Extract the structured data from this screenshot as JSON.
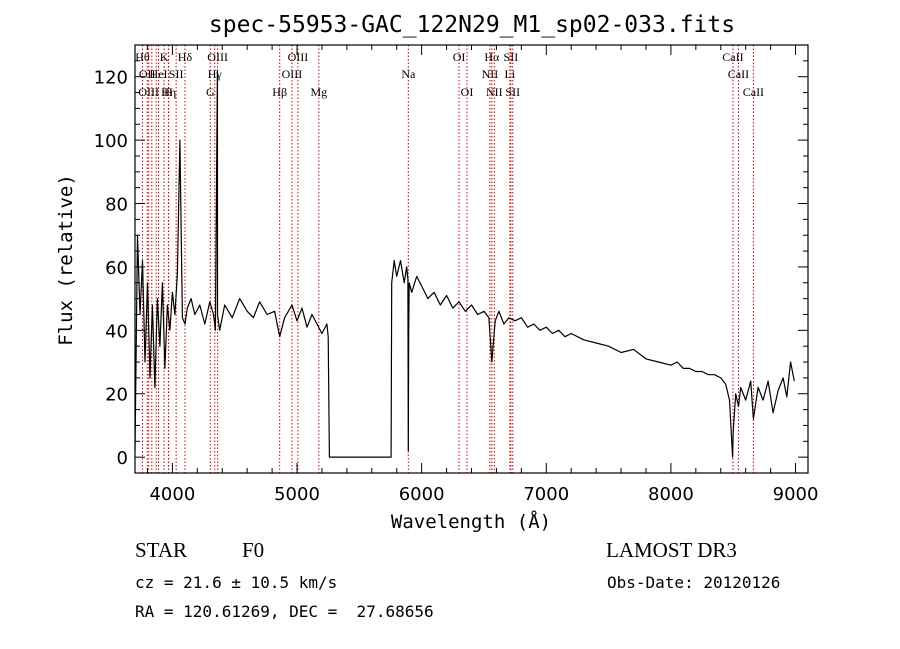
{
  "chart_data": {
    "type": "line",
    "title": "spec-55953-GAC_122N29_M1_sp02-033.fits",
    "xlabel": "Wavelength (Å)",
    "ylabel": "Flux (relative)",
    "xlim": [
      3700,
      9100
    ],
    "ylim": [
      -5,
      130
    ],
    "x_ticks": [
      4000,
      5000,
      6000,
      7000,
      8000,
      9000
    ],
    "y_ticks": [
      0,
      20,
      40,
      60,
      80,
      100,
      120
    ],
    "grid": false,
    "series": [
      {
        "x": [
          3700,
          3720,
          3740,
          3760,
          3780,
          3800,
          3820,
          3840,
          3860,
          3880,
          3900,
          3920,
          3940,
          3960,
          3980,
          4000,
          4020,
          4040,
          4060,
          4080,
          4101,
          4120,
          4150,
          4180,
          4220,
          4260,
          4300,
          4330,
          4345,
          4361,
          4362,
          4380,
          4420,
          4480,
          4540,
          4600,
          4650,
          4700,
          4760,
          4820,
          4861,
          4900,
          4960,
          5000,
          5040,
          5080,
          5120,
          5160,
          5200,
          5240,
          5250,
          5260,
          5290,
          5500,
          5700,
          5755,
          5760,
          5780,
          5800,
          5830,
          5860,
          5880,
          5890,
          5893,
          5896,
          5900,
          5920,
          5960,
          6000,
          6050,
          6100,
          6150,
          6200,
          6250,
          6300,
          6350,
          6400,
          6450,
          6500,
          6540,
          6563,
          6590,
          6620,
          6660,
          6700,
          6750,
          6800,
          6850,
          6900,
          6950,
          7000,
          7050,
          7100,
          7150,
          7200,
          7300,
          7400,
          7500,
          7600,
          7700,
          7800,
          7900,
          8000,
          8050,
          8100,
          8150,
          8200,
          8250,
          8300,
          8350,
          8400,
          8440,
          8470,
          8495,
          8500,
          8520,
          8542,
          8560,
          8600,
          8640,
          8662,
          8700,
          8740,
          8780,
          8820,
          8860,
          8900,
          8930,
          8960,
          8990
        ],
        "y": [
          2,
          70,
          45,
          62,
          30,
          55,
          25,
          48,
          22,
          50,
          35,
          55,
          28,
          48,
          40,
          52,
          45,
          58,
          100,
          44,
          42,
          47,
          50,
          45,
          48,
          42,
          49,
          45,
          40,
          122,
          45,
          40,
          48,
          44,
          50,
          46,
          44,
          49,
          45,
          46,
          38,
          44,
          48,
          43,
          47,
          41,
          45,
          42,
          39,
          42,
          38,
          0,
          0,
          0,
          0,
          0,
          55,
          62,
          57,
          62,
          55,
          60,
          56,
          2,
          40,
          55,
          52,
          57,
          54,
          50,
          52,
          48,
          51,
          47,
          49,
          46,
          48,
          45,
          46,
          44,
          30,
          43,
          46,
          42,
          44,
          43,
          44,
          41,
          42,
          40,
          41,
          39,
          40,
          38,
          39,
          37,
          36,
          35,
          33,
          34,
          31,
          30,
          29,
          30,
          28,
          28,
          27,
          27,
          26,
          26,
          25,
          23,
          18,
          0,
          8,
          20,
          16,
          22,
          18,
          24,
          12,
          22,
          18,
          24,
          14,
          21,
          25,
          19,
          30,
          24
        ]
      }
    ],
    "lines": [
      {
        "x": 3760,
        "row": 0,
        "label": "Hθ"
      },
      {
        "x": 3798,
        "row": 1,
        "label": "OII"
      },
      {
        "x": 3810,
        "row": 2,
        "label": "OIII"
      },
      {
        "x": 3835,
        "row": 0,
        "label": ""
      },
      {
        "x": 3870,
        "row": 0,
        "label": ""
      },
      {
        "x": 3889,
        "row": 1,
        "label": "HeI"
      },
      {
        "x": 3933,
        "row": 0,
        "label": "K"
      },
      {
        "x": 3970,
        "row": 2,
        "label": "Hη"
      },
      {
        "x": 3968,
        "row": 2,
        "label": "H"
      },
      {
        "x": 4030,
        "row": 1,
        "label": "SII"
      },
      {
        "x": 4101,
        "row": 0,
        "label": "Hδ"
      },
      {
        "x": 4304,
        "row": 2,
        "label": "G"
      },
      {
        "x": 4340,
        "row": 1,
        "label": "Hγ"
      },
      {
        "x": 4363,
        "row": 0,
        "label": "OIII"
      },
      {
        "x": 4861,
        "row": 2,
        "label": "Hβ"
      },
      {
        "x": 4959,
        "row": 1,
        "label": "OIII"
      },
      {
        "x": 5007,
        "row": 0,
        "label": "OIII"
      },
      {
        "x": 5175,
        "row": 2,
        "label": "Mg"
      },
      {
        "x": 5893,
        "row": 1,
        "label": "Na"
      },
      {
        "x": 6300,
        "row": 0,
        "label": "OI"
      },
      {
        "x": 6364,
        "row": 2,
        "label": "OI"
      },
      {
        "x": 6548,
        "row": 1,
        "label": "NII"
      },
      {
        "x": 6563,
        "row": 0,
        "label": "Hα"
      },
      {
        "x": 6583,
        "row": 2,
        "label": "NII"
      },
      {
        "x": 6708,
        "row": 1,
        "label": "Li"
      },
      {
        "x": 6716,
        "row": 0,
        "label": "SII"
      },
      {
        "x": 6731,
        "row": 2,
        "label": "SII"
      },
      {
        "x": 8498,
        "row": 0,
        "label": "CaII"
      },
      {
        "x": 8542,
        "row": 1,
        "label": "CaII"
      },
      {
        "x": 8662,
        "row": 2,
        "label": "CaII"
      }
    ]
  },
  "info": {
    "object_type": "STAR",
    "subclass": "F0",
    "survey": "LAMOST DR3",
    "redshift_line": "cz = 21.6 ± 10.5 km/s",
    "obs_date_line": "Obs-Date: 20120126",
    "coords_line": "RA = 120.61269, DEC =  27.68656"
  },
  "colors": {
    "spectrum": "#000000",
    "line_markers": "#cc0000",
    "axes": "#000000",
    "background": "#ffffff"
  }
}
